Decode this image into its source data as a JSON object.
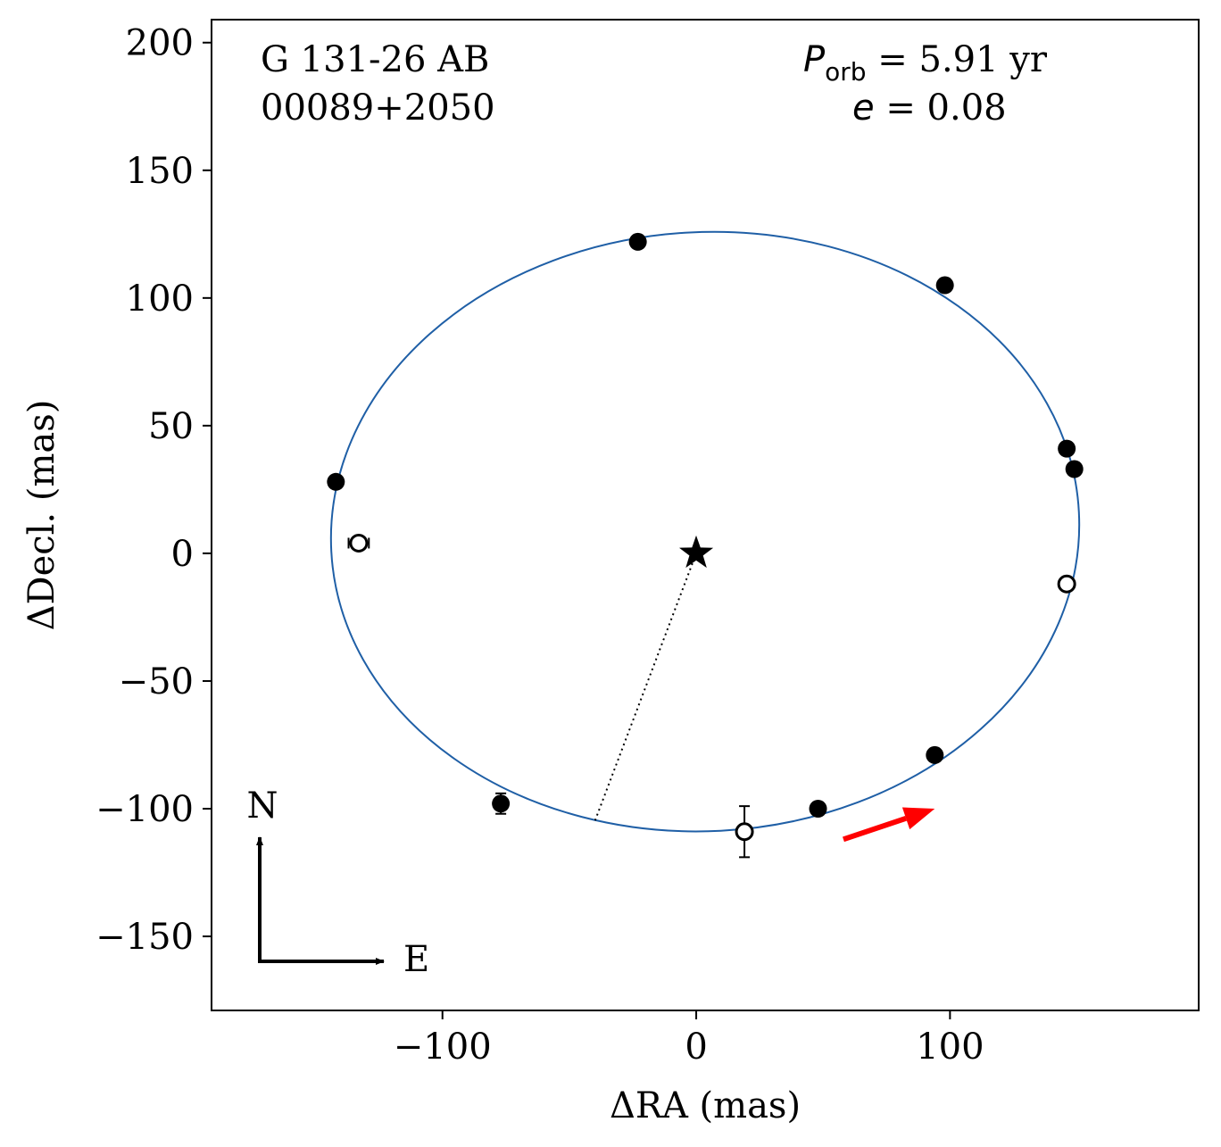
{
  "chart_data": {
    "type": "scatter",
    "title": "",
    "xlabel": "ΔRA  (mas)",
    "ylabel": "ΔDecl.  (mas)",
    "xlim": [
      -191,
      198
    ],
    "ylim": [
      -179,
      209
    ],
    "x_ticks": [
      {
        "value": -100,
        "label": "−100"
      },
      {
        "value": 0,
        "label": "0"
      },
      {
        "value": 100,
        "label": "100"
      }
    ],
    "y_ticks": [
      {
        "value": 200,
        "label": "200"
      },
      {
        "value": 150,
        "label": "150"
      },
      {
        "value": 100,
        "label": "100"
      },
      {
        "value": 50,
        "label": "50"
      },
      {
        "value": 0,
        "label": "0"
      },
      {
        "value": -50,
        "label": "−50"
      },
      {
        "value": -100,
        "label": "−100"
      },
      {
        "value": -150,
        "label": "−150"
      }
    ],
    "grid": false,
    "annotations": {
      "name": "G 131-26 AB",
      "id": "00089+2050",
      "period_symbol": "P",
      "period_sub": "orb",
      "period_value": " =  5.91 yr",
      "ecc_symbol": "e",
      "ecc_value": " = 0.08",
      "north": "N",
      "east": "E"
    },
    "orbit": {
      "color": "#1f5fa6",
      "center": [
        3.5,
        8.5
      ],
      "rx": 147.5,
      "ry": 117.3,
      "rotation_deg": -3
    },
    "primary": {
      "x": 0,
      "y": 0,
      "marker": "star"
    },
    "node_line": {
      "from": [
        0,
        0
      ],
      "to": [
        -40,
        -105
      ]
    },
    "points_filled": [
      {
        "x": -23,
        "y": 122
      },
      {
        "x": 98,
        "y": 105
      },
      {
        "x": -142,
        "y": 28
      },
      {
        "x": 146,
        "y": 41
      },
      {
        "x": 149,
        "y": 33
      },
      {
        "x": 94,
        "y": -79
      },
      {
        "x": 48,
        "y": -100
      },
      {
        "x": -77,
        "y": -98,
        "yerr": 4
      }
    ],
    "points_open": [
      {
        "x": -133,
        "y": 4,
        "xerr": 4,
        "yerr": 2
      },
      {
        "x": 146,
        "y": -12
      },
      {
        "x": 19,
        "y": -109,
        "yerr": 10
      }
    ],
    "direction_arrow": {
      "from": [
        58,
        -112
      ],
      "to": [
        94,
        -100
      ],
      "color": "#ff0000"
    }
  }
}
